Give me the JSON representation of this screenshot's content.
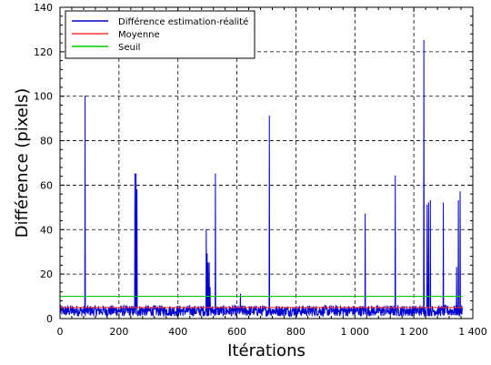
{
  "chart_data": {
    "type": "line",
    "xlabel": "Itérations",
    "ylabel": "Différence (pixels)",
    "xlim": [
      0,
      1400
    ],
    "ylim": [
      0,
      140
    ],
    "xticks": [
      0,
      200,
      400,
      600,
      800,
      1000,
      1200,
      1400
    ],
    "xtick_labels": [
      "0",
      "200",
      "400",
      "600",
      "800",
      "1 000",
      "1 200",
      "1 400"
    ],
    "yticks": [
      0,
      20,
      40,
      60,
      80,
      100,
      120,
      140
    ],
    "ytick_labels": [
      "0",
      "20",
      "40",
      "60",
      "80",
      "100",
      "120",
      "140"
    ],
    "grid": true,
    "legend_position": "top-left",
    "series": [
      {
        "name": "Différence estimation-réalité",
        "color": "#0000cc",
        "baseline": {
          "x_start": 0,
          "x_end": 1365,
          "typical_min": 1,
          "typical_max": 6
        },
        "spikes": [
          {
            "x": 85,
            "y": 100
          },
          {
            "x": 254,
            "y": 65
          },
          {
            "x": 258,
            "y": 65
          },
          {
            "x": 261,
            "y": 58
          },
          {
            "x": 496,
            "y": 40
          },
          {
            "x": 499,
            "y": 29
          },
          {
            "x": 502,
            "y": 25
          },
          {
            "x": 506,
            "y": 25
          },
          {
            "x": 509,
            "y": 14
          },
          {
            "x": 527,
            "y": 65
          },
          {
            "x": 612,
            "y": 11
          },
          {
            "x": 710,
            "y": 91
          },
          {
            "x": 1035,
            "y": 47
          },
          {
            "x": 1137,
            "y": 64
          },
          {
            "x": 1234,
            "y": 125
          },
          {
            "x": 1245,
            "y": 51
          },
          {
            "x": 1250,
            "y": 52
          },
          {
            "x": 1256,
            "y": 53
          },
          {
            "x": 1300,
            "y": 52
          },
          {
            "x": 1345,
            "y": 23
          },
          {
            "x": 1351,
            "y": 53
          },
          {
            "x": 1357,
            "y": 57
          }
        ]
      },
      {
        "name": "Moyenne",
        "color": "#ff3333",
        "values": [
          [
            0,
            5
          ],
          [
            1365,
            5
          ]
        ]
      },
      {
        "name": "Seuil",
        "color": "#00cc00",
        "values": [
          [
            0,
            10
          ],
          [
            1365,
            10
          ]
        ]
      }
    ]
  }
}
